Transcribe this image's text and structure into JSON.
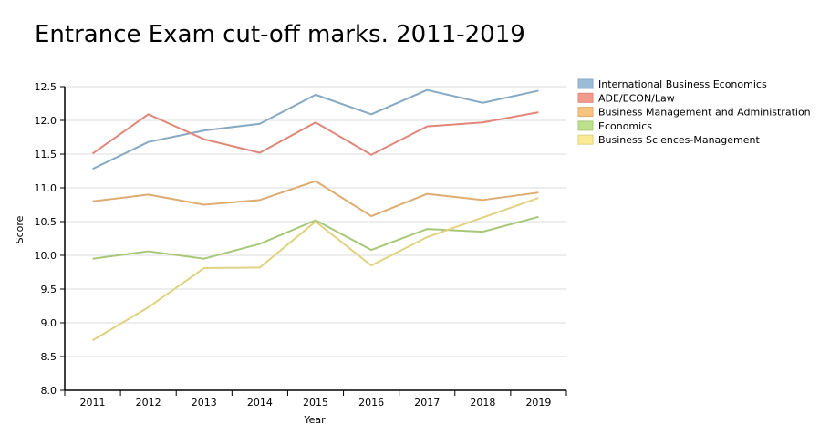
{
  "chart_data": {
    "type": "line",
    "title": "Entrance Exam cut-off marks. 2011-2019",
    "xlabel": "Year",
    "ylabel": "Score",
    "categories": [
      "2011",
      "2012",
      "2013",
      "2014",
      "2015",
      "2016",
      "2017",
      "2018",
      "2019"
    ],
    "ylim": [
      8.0,
      12.5
    ],
    "yticks": [
      "8.0",
      "8.5",
      "9.0",
      "9.5",
      "10.0",
      "10.5",
      "11.0",
      "11.5",
      "12.0",
      "12.5"
    ],
    "grid": "horizontal",
    "legend_position": "top-right",
    "series": [
      {
        "name": "International Business Economics",
        "color": "#88a9c3",
        "legend_color": "#9bbcd6",
        "values": [
          11.28,
          11.68,
          11.85,
          11.95,
          12.38,
          12.09,
          12.45,
          12.26,
          12.44
        ]
      },
      {
        "name": "ADE/ECON/Law",
        "color": "#e0877a",
        "legend_color": "#f39a8d",
        "values": [
          11.51,
          12.09,
          11.72,
          11.52,
          11.97,
          11.49,
          11.91,
          11.97,
          12.12
        ]
      },
      {
        "name": "Business Management and Administration",
        "color": "#deac71",
        "legend_color": "#f8c37c",
        "values": [
          10.8,
          10.9,
          10.75,
          10.82,
          11.1,
          10.58,
          10.91,
          10.82,
          10.93
        ]
      },
      {
        "name": "Economics",
        "color": "#a9c77a",
        "legend_color": "#bde08d",
        "values": [
          9.95,
          10.06,
          9.95,
          10.17,
          10.52,
          10.08,
          10.39,
          10.35,
          10.57
        ]
      },
      {
        "name": "Business Sciences-Management",
        "color": "#dfd281",
        "legend_color": "#f9ec92",
        "values": [
          8.74,
          9.23,
          9.81,
          9.82,
          10.5,
          9.85,
          10.27,
          10.56,
          10.85
        ]
      }
    ]
  }
}
